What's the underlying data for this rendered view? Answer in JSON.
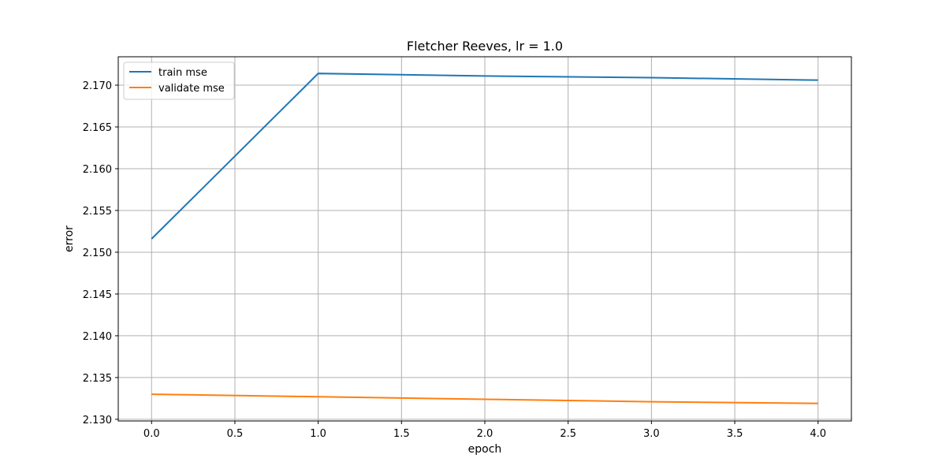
{
  "chart_data": {
    "type": "line",
    "title": "Fletcher Reeves, lr = 1.0",
    "xlabel": "epoch",
    "ylabel": "error",
    "x": [
      0,
      1,
      2,
      3,
      4
    ],
    "xlim": [
      -0.2,
      4.2
    ],
    "ylim": [
      2.1298,
      2.1734
    ],
    "xticks": [
      "0.0",
      "0.5",
      "1.0",
      "1.5",
      "2.0",
      "2.5",
      "3.0",
      "3.5",
      "4.0"
    ],
    "yticks": [
      "2.130",
      "2.135",
      "2.140",
      "2.145",
      "2.150",
      "2.155",
      "2.160",
      "2.165",
      "2.170"
    ],
    "grid": true,
    "legend_position": "top-left",
    "series": [
      {
        "name": "train mse",
        "color": "#1f77b4",
        "values": [
          2.1516,
          2.1714,
          2.1711,
          2.1709,
          2.1706
        ]
      },
      {
        "name": "validate mse",
        "color": "#ff7f0e",
        "values": [
          2.133,
          2.1327,
          2.1324,
          2.1321,
          2.1319
        ]
      }
    ]
  }
}
